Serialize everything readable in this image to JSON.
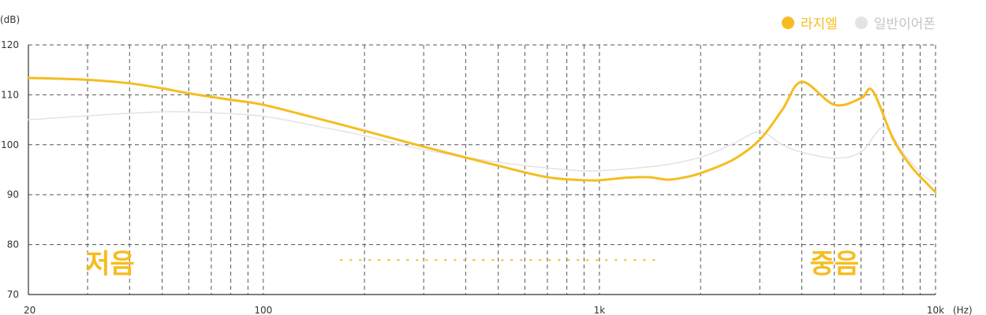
{
  "chart_data": {
    "type": "line",
    "title": "",
    "xlabel": "(Hz)",
    "ylabel": "(dB)",
    "x_scale": "log",
    "xlim": [
      20,
      10000
    ],
    "ylim": [
      70,
      120
    ],
    "grid": true,
    "legend_position": "top-right",
    "x_tick_labels": [
      {
        "value": 20,
        "label": "20"
      },
      {
        "value": 100,
        "label": "100"
      },
      {
        "value": 1000,
        "label": "1k"
      },
      {
        "value": 10000,
        "label": "10k"
      }
    ],
    "y_ticks": [
      70,
      80,
      90,
      100,
      110,
      120
    ],
    "series": [
      {
        "name": "라지엘",
        "color": "#f5bd1f",
        "points": [
          [
            20,
            113.4
          ],
          [
            30,
            113
          ],
          [
            40,
            112.3
          ],
          [
            50,
            111.3
          ],
          [
            60,
            110.3
          ],
          [
            80,
            109
          ],
          [
            100,
            108
          ],
          [
            150,
            105
          ],
          [
            200,
            102.8
          ],
          [
            300,
            99.6
          ],
          [
            500,
            95.8
          ],
          [
            700,
            93.5
          ],
          [
            900,
            92.9
          ],
          [
            1000,
            92.9
          ],
          [
            1200,
            93.4
          ],
          [
            1400,
            93.5
          ],
          [
            1600,
            93
          ],
          [
            1800,
            93.5
          ],
          [
            2000,
            94.3
          ],
          [
            2500,
            97
          ],
          [
            3000,
            101
          ],
          [
            3500,
            107
          ],
          [
            4000,
            112.6
          ],
          [
            5000,
            108
          ],
          [
            6000,
            109.3
          ],
          [
            6500,
            110.8
          ],
          [
            7500,
            101
          ],
          [
            8500,
            95.5
          ],
          [
            9500,
            92
          ],
          [
            10000,
            90.5
          ]
        ]
      },
      {
        "name": "일반이어폰",
        "color": "#e3e3e3",
        "points": [
          [
            20,
            105
          ],
          [
            30,
            105.8
          ],
          [
            50,
            106.6
          ],
          [
            70,
            106.4
          ],
          [
            100,
            105.7
          ],
          [
            150,
            103.5
          ],
          [
            200,
            101.8
          ],
          [
            300,
            99
          ],
          [
            500,
            96.5
          ],
          [
            800,
            95
          ],
          [
            1000,
            94.8
          ],
          [
            1500,
            95.8
          ],
          [
            2000,
            97.5
          ],
          [
            2500,
            100.2
          ],
          [
            3000,
            102.6
          ],
          [
            3500,
            100
          ],
          [
            4000,
            98.5
          ],
          [
            5000,
            97.3
          ],
          [
            6000,
            98.5
          ],
          [
            7000,
            103.5
          ],
          [
            8000,
            98.5
          ],
          [
            9000,
            94.5
          ],
          [
            10000,
            92
          ]
        ]
      }
    ],
    "annotations": [
      {
        "text": "저음",
        "x": 35,
        "y": 75
      },
      {
        "text": "중음",
        "x": 5000,
        "y": 75
      }
    ],
    "dotted_marker": {
      "x_start": 170,
      "x_end": 1520,
      "y": 75,
      "color": "#f5bd1f"
    }
  }
}
